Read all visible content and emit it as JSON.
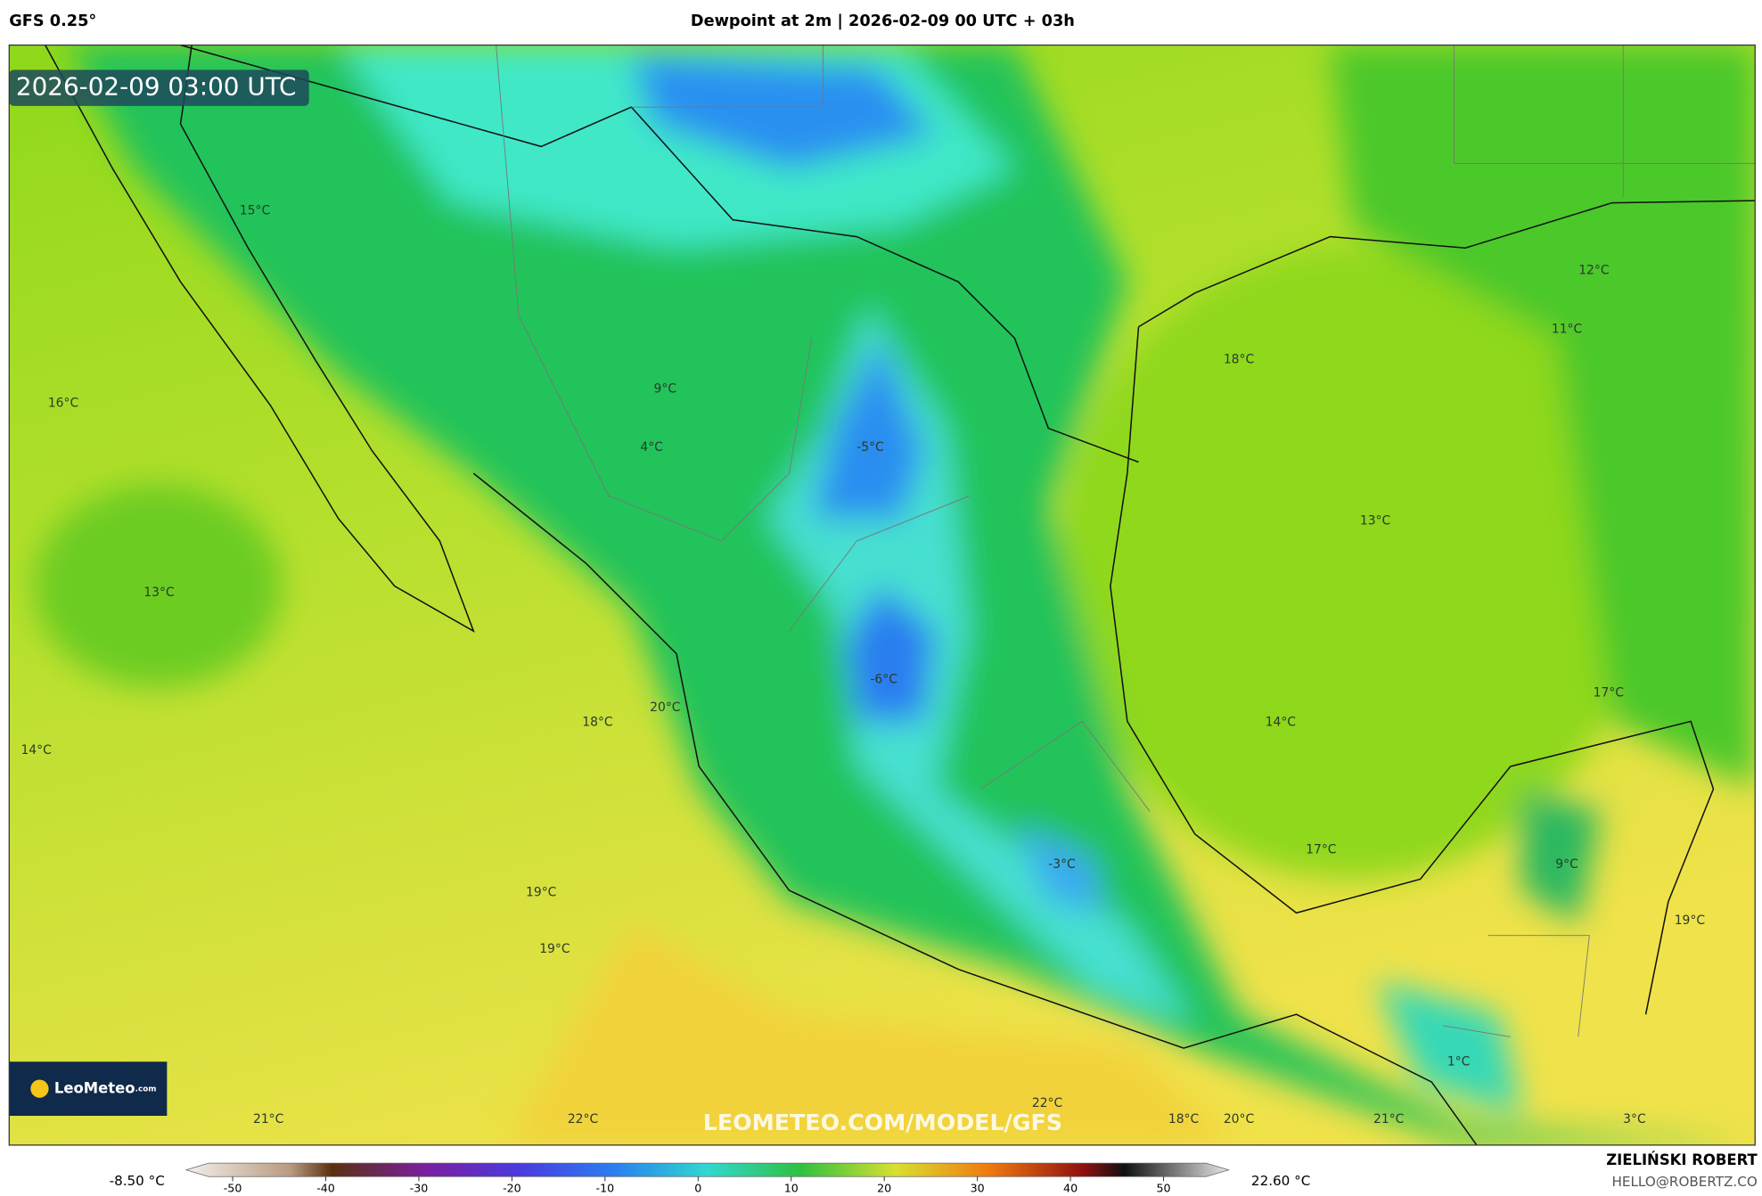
{
  "header": {
    "model": "GFS 0.25°",
    "title": "Dewpoint at 2m | 2026-02-09 00 UTC + 03h"
  },
  "timestamp": "2026-02-09 03:00 UTC",
  "map_labels": [
    "15°C",
    "16°C",
    "13°C",
    "14°C",
    "9°C",
    "4°C",
    "-5°C",
    "-6°C",
    "18°C",
    "20°C",
    "19°C",
    "19°C",
    "-3°C",
    "18°C",
    "12°C",
    "11°C",
    "13°C",
    "17°C",
    "14°C",
    "17°C",
    "9°C",
    "19°C",
    "1°C",
    "21°C",
    "22°C",
    "22°C",
    "18°C",
    "20°C",
    "21°C",
    "3°C"
  ],
  "logo": {
    "name": "LeoMeteo",
    "suffix": ".com"
  },
  "watermark": "LEOMETEO.COM/MODEL/GFS",
  "colorbar": {
    "min_label": "-8.50 °C",
    "max_label": "22.60 °C",
    "lim": [
      -55,
      57
    ],
    "ticks": [
      -50,
      -40,
      -30,
      -20,
      -10,
      0,
      10,
      20,
      30,
      40,
      50
    ]
  },
  "footer": {
    "author": "ZIELIŃSKI ROBERT",
    "email": "HELLO@ROBERTZ.CO"
  }
}
